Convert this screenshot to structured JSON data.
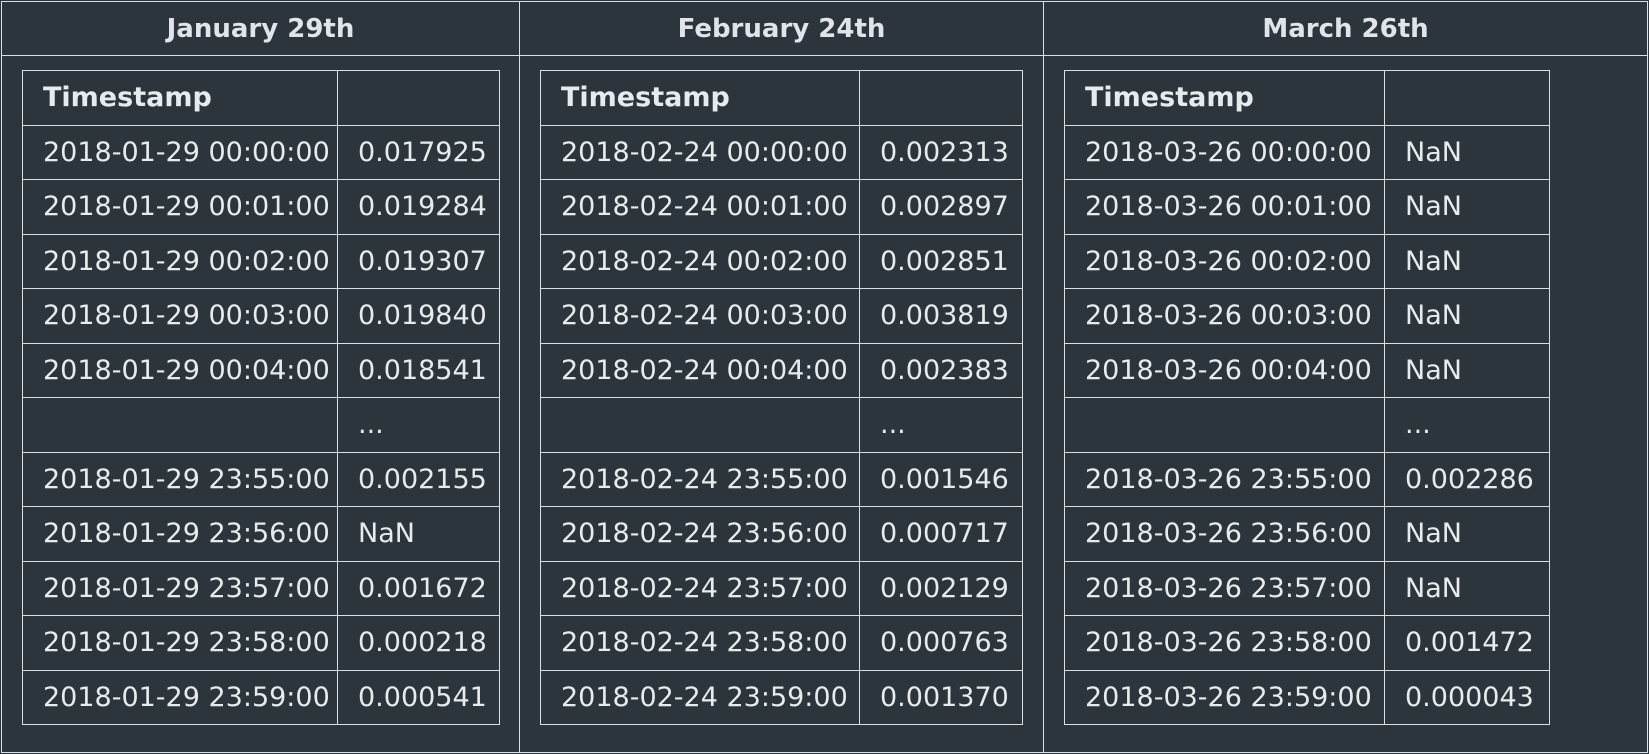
{
  "panels": [
    {
      "title": "January 29th",
      "header": [
        "Timestamp",
        ""
      ],
      "rows": [
        [
          "2018-01-29 00:00:00",
          "0.017925"
        ],
        [
          "2018-01-29 00:01:00",
          "0.019284"
        ],
        [
          "2018-01-29 00:02:00",
          "0.019307"
        ],
        [
          "2018-01-29 00:03:00",
          "0.019840"
        ],
        [
          "2018-01-29 00:04:00",
          "0.018541"
        ],
        [
          "",
          "..."
        ],
        [
          "2018-01-29 23:55:00",
          "0.002155"
        ],
        [
          "2018-01-29 23:56:00",
          "NaN"
        ],
        [
          "2018-01-29 23:57:00",
          "0.001672"
        ],
        [
          "2018-01-29 23:58:00",
          "0.000218"
        ],
        [
          "2018-01-29 23:59:00",
          "0.000541"
        ]
      ]
    },
    {
      "title": "February 24th",
      "header": [
        "Timestamp",
        ""
      ],
      "rows": [
        [
          "2018-02-24 00:00:00",
          "0.002313"
        ],
        [
          "2018-02-24 00:01:00",
          "0.002897"
        ],
        [
          "2018-02-24 00:02:00",
          "0.002851"
        ],
        [
          "2018-02-24 00:03:00",
          "0.003819"
        ],
        [
          "2018-02-24 00:04:00",
          "0.002383"
        ],
        [
          "",
          "..."
        ],
        [
          "2018-02-24 23:55:00",
          "0.001546"
        ],
        [
          "2018-02-24 23:56:00",
          "0.000717"
        ],
        [
          "2018-02-24 23:57:00",
          "0.002129"
        ],
        [
          "2018-02-24 23:58:00",
          "0.000763"
        ],
        [
          "2018-02-24 23:59:00",
          "0.001370"
        ]
      ]
    },
    {
      "title": "March 26th",
      "header": [
        "Timestamp",
        ""
      ],
      "rows": [
        [
          "2018-03-26 00:00:00",
          "NaN"
        ],
        [
          "2018-03-26 00:01:00",
          "NaN"
        ],
        [
          "2018-03-26 00:02:00",
          "NaN"
        ],
        [
          "2018-03-26 00:03:00",
          "NaN"
        ],
        [
          "2018-03-26 00:04:00",
          "NaN"
        ],
        [
          "",
          "..."
        ],
        [
          "2018-03-26 23:55:00",
          "0.002286"
        ],
        [
          "2018-03-26 23:56:00",
          "NaN"
        ],
        [
          "2018-03-26 23:57:00",
          "NaN"
        ],
        [
          "2018-03-26 23:58:00",
          "0.001472"
        ],
        [
          "2018-03-26 23:59:00",
          "0.000043"
        ]
      ]
    }
  ],
  "colors": {
    "background": "#2b353b",
    "border": "#d9dee2",
    "text": "#e6ebee"
  }
}
